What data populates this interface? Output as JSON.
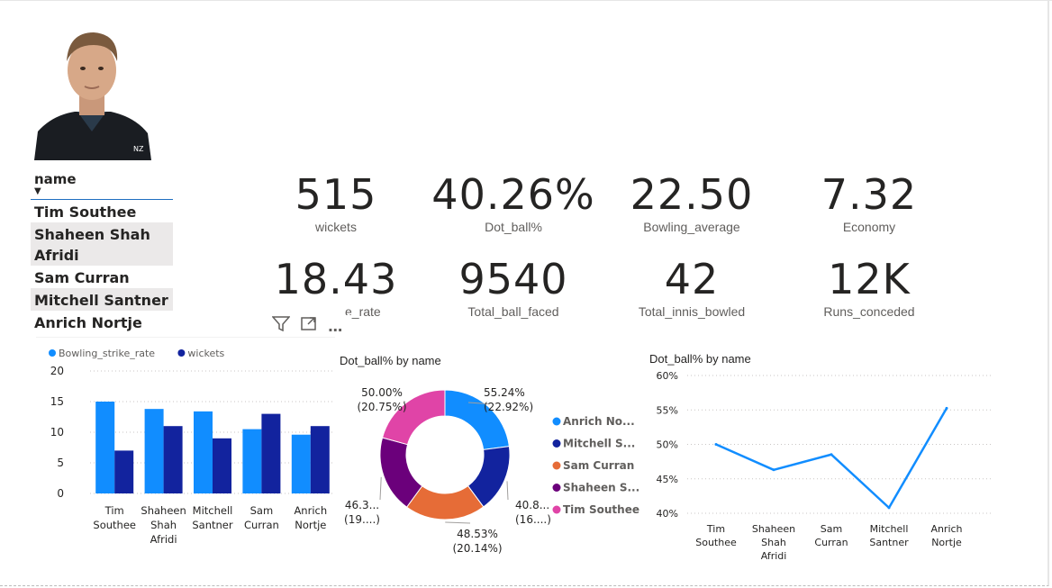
{
  "slicer": {
    "title": "name",
    "items": [
      "Tim Southee",
      "Shaheen Shah Afridi",
      "Sam Curran",
      "Mitchell Santner",
      "Anrich Nortje"
    ]
  },
  "kpis": [
    {
      "value": "515",
      "label": "wickets"
    },
    {
      "value": "40.26%",
      "label": "Dot_ball%"
    },
    {
      "value": "22.50",
      "label": "Bowling_average"
    },
    {
      "value": "7.32",
      "label": "Economy"
    },
    {
      "value": "18.43",
      "label": "e_rate"
    },
    {
      "value": "9540",
      "label": "Total_ball_faced"
    },
    {
      "value": "42",
      "label": "Total_innis_bowled"
    },
    {
      "value": "12K",
      "label": "Runs_conceded"
    }
  ],
  "colors": {
    "light_blue": "#118dff",
    "dark_blue": "#12239e",
    "orange": "#e66c37",
    "purple": "#6b007b",
    "pink": "#e044a7",
    "line": "#118dff"
  },
  "chart_data": [
    {
      "type": "bar",
      "title": "",
      "legend": [
        "Bowling_strike_rate",
        "wickets"
      ],
      "categories": [
        "Tim Southee",
        "Shaheen Shah Afridi",
        "Mitchell Santner",
        "Sam Curran",
        "Anrich Nortje"
      ],
      "category_lines": [
        [
          "Tim",
          "Southee"
        ],
        [
          "Shaheen",
          "Shah",
          "Afridi"
        ],
        [
          "Mitchell",
          "Santner"
        ],
        [
          "Sam",
          "Curran"
        ],
        [
          "Anrich",
          "Nortje"
        ]
      ],
      "series": [
        {
          "name": "Bowling_strike_rate",
          "values": [
            15,
            13.8,
            13.4,
            10.5,
            9.6
          ]
        },
        {
          "name": "wickets",
          "values": [
            7,
            11,
            9,
            13,
            11
          ]
        }
      ],
      "yticks": [
        "0",
        "5",
        "10",
        "15",
        "20"
      ],
      "ylim": [
        0,
        20
      ]
    },
    {
      "type": "pie",
      "title": "Dot_ball% by name",
      "legend": [
        "Anrich No...",
        "Mitchell S...",
        "Sam Curran",
        "Shaheen S...",
        "Tim Southee"
      ],
      "slices": [
        {
          "name": "Anrich Nortje",
          "value": 55.24,
          "pct": 22.92,
          "label1": "55.24%",
          "label2": "(22.92%)"
        },
        {
          "name": "Mitchell Santner",
          "value": 40.8,
          "pct": 16.93,
          "label1": "40.8...",
          "label2": "(16....)"
        },
        {
          "name": "Sam Curran",
          "value": 48.53,
          "pct": 20.14,
          "label1": "48.53%",
          "label2": "(20.14%)"
        },
        {
          "name": "Shaheen Shah Afridi",
          "value": 46.3,
          "pct": 19.26,
          "label1": "46.3...",
          "label2": "(19....)"
        },
        {
          "name": "Tim Southee",
          "value": 50.0,
          "pct": 20.75,
          "label1": "50.00%",
          "label2": "(20.75%)"
        }
      ]
    },
    {
      "type": "line",
      "title": "Dot_ball% by name",
      "categories": [
        "Tim Southee",
        "Shaheen Shah Afridi",
        "Sam Curran",
        "Mitchell Santner",
        "Anrich Nortje"
      ],
      "category_lines": [
        [
          "Tim",
          "Southee"
        ],
        [
          "Shaheen",
          "Shah",
          "Afridi"
        ],
        [
          "Sam",
          "Curran"
        ],
        [
          "Mitchell",
          "Santner"
        ],
        [
          "Anrich",
          "Nortje"
        ]
      ],
      "values": [
        50.0,
        46.3,
        48.53,
        40.8,
        55.24
      ],
      "yticks": [
        "40%",
        "45%",
        "50%",
        "55%",
        "60%"
      ],
      "ylim": [
        40,
        60
      ]
    }
  ]
}
